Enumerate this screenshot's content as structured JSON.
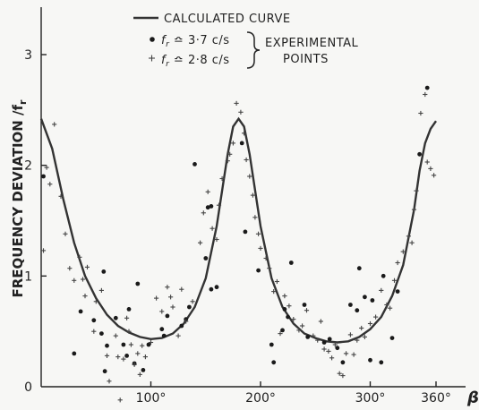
{
  "chart_data": {
    "type": "scatter",
    "ylabel": "FREQUENCY DEVIATION /f",
    "ylabel_sub": "r",
    "xlabel": "β",
    "xlim": [
      0,
      360
    ],
    "ylim": [
      0,
      3.3
    ],
    "x_ticks": [
      100,
      200,
      300,
      360
    ],
    "x_tick_labels": [
      "100°",
      "200°",
      "300°",
      "360°"
    ],
    "y_ticks": [
      0,
      1,
      2,
      3
    ],
    "y_tick_labels": [
      "0",
      "1",
      "2",
      "3"
    ],
    "legend": {
      "curve_label": "CALCULATED CURVE",
      "dot_label": "f",
      "dot_label_sub": "r",
      "dot_value": "≏ 3·7 c/s",
      "plus_label": "f",
      "plus_label_sub": "r",
      "plus_value": "≏ 2·8 c/s",
      "group_label_1": "EXPERIMENTAL",
      "group_label_2": "POINTS"
    },
    "series": [
      {
        "kind": "line",
        "x": [
          0,
          10,
          20,
          30,
          40,
          50,
          60,
          70,
          80,
          90,
          100,
          110,
          120,
          130,
          140,
          150,
          160,
          170,
          175,
          180,
          185,
          190,
          200,
          210,
          220,
          230,
          240,
          250,
          260,
          270,
          280,
          290,
          300,
          310,
          320,
          330,
          340,
          345,
          350,
          355,
          360
        ],
        "y": [
          2.42,
          2.15,
          1.7,
          1.3,
          1.0,
          0.8,
          0.65,
          0.55,
          0.49,
          0.45,
          0.43,
          0.44,
          0.48,
          0.57,
          0.72,
          0.98,
          1.45,
          2.1,
          2.35,
          2.42,
          2.35,
          2.1,
          1.45,
          0.98,
          0.72,
          0.57,
          0.48,
          0.44,
          0.41,
          0.4,
          0.41,
          0.45,
          0.52,
          0.63,
          0.82,
          1.1,
          1.6,
          1.95,
          2.2,
          2.33,
          2.4
        ]
      },
      {
        "kind": "dot",
        "points": [
          [
            2,
            1.9
          ],
          [
            30,
            0.3
          ],
          [
            36,
            0.68
          ],
          [
            48,
            0.6
          ],
          [
            55,
            0.48
          ],
          [
            58,
            0.14
          ],
          [
            57,
            1.04
          ],
          [
            60,
            0.37
          ],
          [
            68,
            0.62
          ],
          [
            75,
            0.38
          ],
          [
            78,
            0.28
          ],
          [
            80,
            0.7
          ],
          [
            85,
            0.21
          ],
          [
            88,
            0.93
          ],
          [
            93,
            0.15
          ],
          [
            98,
            0.38
          ],
          [
            110,
            0.52
          ],
          [
            112,
            0.46
          ],
          [
            115,
            0.64
          ],
          [
            128,
            0.55
          ],
          [
            132,
            0.61
          ],
          [
            135,
            0.72
          ],
          [
            140,
            2.01
          ],
          [
            150,
            1.16
          ],
          [
            152,
            1.62
          ],
          [
            155,
            1.63
          ],
          [
            155,
            0.88
          ],
          [
            160,
            0.9
          ],
          [
            183,
            2.2
          ],
          [
            186,
            1.4
          ],
          [
            198,
            1.05
          ],
          [
            210,
            0.38
          ],
          [
            212,
            0.22
          ],
          [
            220,
            0.51
          ],
          [
            222,
            0.7
          ],
          [
            225,
            0.63
          ],
          [
            228,
            1.12
          ],
          [
            240,
            0.74
          ],
          [
            243,
            0.45
          ],
          [
            258,
            0.4
          ],
          [
            263,
            0.43
          ],
          [
            270,
            0.35
          ],
          [
            275,
            0.22
          ],
          [
            282,
            0.74
          ],
          [
            288,
            0.69
          ],
          [
            290,
            1.07
          ],
          [
            295,
            0.81
          ],
          [
            300,
            0.24
          ],
          [
            302,
            0.78
          ],
          [
            310,
            0.22
          ],
          [
            312,
            1.0
          ],
          [
            325,
            0.86
          ],
          [
            320,
            0.44
          ],
          [
            345,
            2.1
          ],
          [
            352,
            2.7
          ]
        ]
      },
      {
        "kind": "plus",
        "points": [
          [
            2,
            1.23
          ],
          [
            5,
            1.98
          ],
          [
            8,
            1.83
          ],
          [
            12,
            2.37
          ],
          [
            18,
            1.72
          ],
          [
            22,
            1.38
          ],
          [
            26,
            1.07
          ],
          [
            30,
            0.96
          ],
          [
            35,
            1.17
          ],
          [
            38,
            0.97
          ],
          [
            40,
            0.82
          ],
          [
            42,
            1.08
          ],
          [
            48,
            0.5
          ],
          [
            50,
            0.77
          ],
          [
            55,
            0.87
          ],
          [
            60,
            0.28
          ],
          [
            62,
            0.05
          ],
          [
            68,
            0.46
          ],
          [
            70,
            0.27
          ],
          [
            72,
            -0.12
          ],
          [
            75,
            0.25
          ],
          [
            78,
            0.62
          ],
          [
            80,
            0.5
          ],
          [
            82,
            0.38
          ],
          [
            85,
            0.2
          ],
          [
            88,
            0.3
          ],
          [
            90,
            0.11
          ],
          [
            92,
            0.37
          ],
          [
            95,
            0.27
          ],
          [
            100,
            0.4
          ],
          [
            105,
            0.8
          ],
          [
            110,
            0.68
          ],
          [
            115,
            0.9
          ],
          [
            118,
            0.81
          ],
          [
            120,
            0.72
          ],
          [
            125,
            0.46
          ],
          [
            128,
            0.88
          ],
          [
            132,
            0.59
          ],
          [
            138,
            0.77
          ],
          [
            145,
            1.3
          ],
          [
            148,
            1.57
          ],
          [
            152,
            1.76
          ],
          [
            156,
            1.43
          ],
          [
            160,
            1.33
          ],
          [
            162,
            1.64
          ],
          [
            165,
            1.88
          ],
          [
            170,
            2.04
          ],
          [
            172,
            2.1
          ],
          [
            175,
            2.2
          ],
          [
            178,
            2.56
          ],
          [
            182,
            2.48
          ],
          [
            185,
            2.29
          ],
          [
            187,
            2.05
          ],
          [
            190,
            1.9
          ],
          [
            193,
            1.73
          ],
          [
            195,
            1.53
          ],
          [
            198,
            1.38
          ],
          [
            200,
            1.25
          ],
          [
            205,
            1.16
          ],
          [
            208,
            1.07
          ],
          [
            212,
            0.86
          ],
          [
            215,
            0.95
          ],
          [
            218,
            0.48
          ],
          [
            222,
            0.82
          ],
          [
            226,
            0.73
          ],
          [
            230,
            0.61
          ],
          [
            235,
            0.51
          ],
          [
            238,
            0.55
          ],
          [
            242,
            0.69
          ],
          [
            248,
            0.46
          ],
          [
            252,
            0.42
          ],
          [
            255,
            0.59
          ],
          [
            258,
            0.34
          ],
          [
            262,
            0.32
          ],
          [
            265,
            0.26
          ],
          [
            268,
            0.38
          ],
          [
            272,
            0.12
          ],
          [
            275,
            0.1
          ],
          [
            278,
            0.3
          ],
          [
            282,
            0.47
          ],
          [
            285,
            0.29
          ],
          [
            288,
            0.42
          ],
          [
            292,
            0.53
          ],
          [
            295,
            0.45
          ],
          [
            300,
            0.57
          ],
          [
            305,
            0.63
          ],
          [
            310,
            0.87
          ],
          [
            315,
            0.74
          ],
          [
            318,
            0.71
          ],
          [
            322,
            0.96
          ],
          [
            325,
            1.12
          ],
          [
            330,
            1.22
          ],
          [
            335,
            1.36
          ],
          [
            338,
            1.3
          ],
          [
            340,
            1.6
          ],
          [
            342,
            1.77
          ],
          [
            346,
            2.47
          ],
          [
            350,
            2.64
          ],
          [
            352,
            2.03
          ],
          [
            355,
            1.97
          ],
          [
            358,
            1.91
          ]
        ]
      }
    ]
  }
}
